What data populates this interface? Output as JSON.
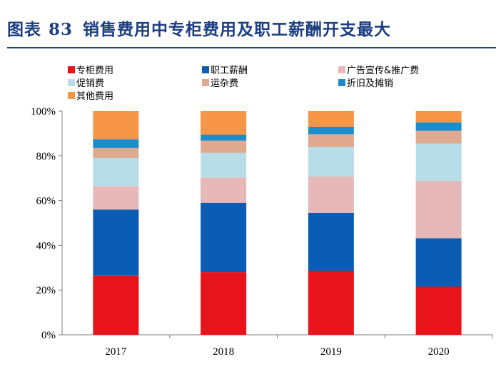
{
  "title": {
    "prefix": "图表",
    "number": "83",
    "text": "销售费用中专柜费用及职工薪酬开支最大"
  },
  "colors": {
    "title": "#1c3f82",
    "专柜费用": "#e8141c",
    "职工薪酬": "#0a5cb4",
    "广告宣传&推广费": "#e6b8b7",
    "促销费": "#b7dde8",
    "运杂费": "#dea98f",
    "折旧及摊销": "#1b8dcc",
    "其他费用": "#f79646"
  },
  "chart_data": {
    "type": "bar",
    "stacked": true,
    "categories": [
      "2017",
      "2018",
      "2019",
      "2020"
    ],
    "series": [
      {
        "name": "专柜费用",
        "values": [
          26.5,
          28.0,
          28.5,
          21.5
        ]
      },
      {
        "name": "职工薪酬",
        "values": [
          29.5,
          31.0,
          26.0,
          21.7
        ]
      },
      {
        "name": "广告宣传&推广费",
        "values": [
          10.5,
          11.3,
          16.3,
          25.6
        ]
      },
      {
        "name": "促销费",
        "values": [
          12.5,
          11.0,
          13.2,
          16.7
        ]
      },
      {
        "name": "运杂费",
        "values": [
          4.5,
          5.5,
          5.7,
          5.7
        ]
      },
      {
        "name": "折旧及摊销",
        "values": [
          4.0,
          2.7,
          3.3,
          3.8
        ]
      },
      {
        "name": "其他费用",
        "values": [
          12.5,
          10.5,
          7.0,
          5.0
        ]
      }
    ],
    "yticks": [
      "0%",
      "20%",
      "40%",
      "60%",
      "80%",
      "100%"
    ],
    "ylim": [
      0,
      100
    ],
    "legend_position": "top-left",
    "xlabel": "",
    "ylabel": ""
  }
}
